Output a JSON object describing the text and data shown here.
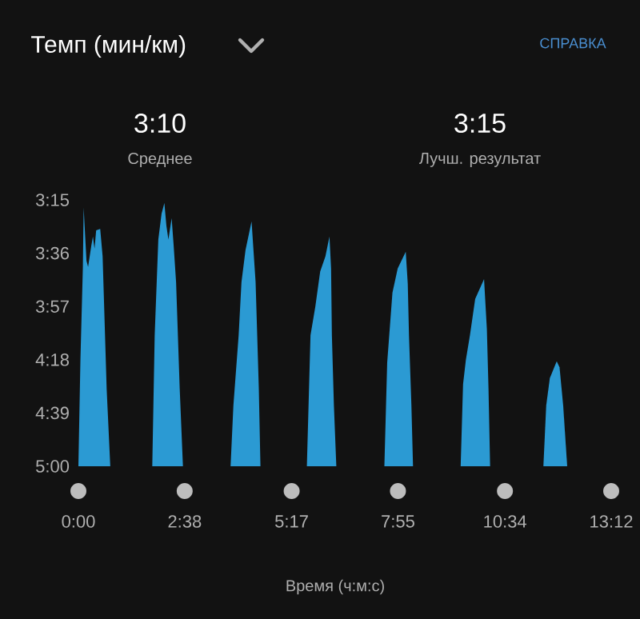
{
  "chart_data": {
    "type": "area",
    "title": "Темп (мин/км)",
    "xlabel": "Время (ч:м:с)",
    "color": "#2b9ad3",
    "annotations": [
      "3:10",
      "Среднее",
      "3:15",
      "Лучш. результат",
      "СПРАВКА"
    ],
    "x": [
      0,
      0.05,
      0.11,
      0.13,
      0.2,
      0.24,
      0.32,
      0.36,
      0.4,
      0.44,
      0.54,
      0.6,
      0.7,
      0.79,
      1.3,
      1.83,
      1.89,
      1.98,
      2.06,
      2.13,
      2.18,
      2.23,
      2.31,
      2.36,
      2.42,
      2.51,
      2.59,
      3.2,
      3.77,
      3.84,
      3.97,
      4.04,
      4.14,
      4.29,
      4.39,
      4.47,
      4.51,
      5.1,
      5.66,
      5.75,
      5.87,
      5.99,
      6.12,
      6.22,
      6.26,
      6.28,
      6.33,
      6.39,
      7.0,
      7.58,
      7.65,
      7.78,
      7.91,
      8.11,
      8.16,
      8.19,
      8.25,
      8.29,
      8.9,
      9.47,
      9.53,
      9.6,
      9.7,
      9.83,
      10.05,
      10.12,
      10.16,
      10.2,
      10.9,
      11.52,
      11.59,
      11.68,
      11.85,
      11.92,
      12.01,
      12.11
    ],
    "values": [
      5.0,
      4.3,
      3.7,
      3.3,
      3.65,
      3.69,
      3.55,
      3.49,
      3.57,
      3.45,
      3.44,
      3.62,
      4.49,
      5.0,
      null,
      5.0,
      4.14,
      3.51,
      3.34,
      3.27,
      3.42,
      3.51,
      3.37,
      3.55,
      3.79,
      4.49,
      5.0,
      null,
      5.0,
      4.6,
      4.14,
      3.79,
      3.58,
      3.39,
      3.79,
      4.49,
      5.0,
      null,
      5.0,
      4.14,
      3.95,
      3.72,
      3.62,
      3.49,
      3.7,
      4.14,
      4.6,
      5.0,
      null,
      5.0,
      4.32,
      3.86,
      3.7,
      3.59,
      3.8,
      4.14,
      4.6,
      5.0,
      null,
      5.0,
      4.46,
      4.3,
      4.14,
      3.9,
      3.77,
      4.1,
      4.49,
      5.0,
      null,
      5.0,
      4.6,
      4.42,
      4.31,
      4.35,
      4.6,
      5.0
    ],
    "xlim": [
      0,
      13.2
    ],
    "xticks": [
      {
        "value": 0,
        "label": "0:00"
      },
      {
        "value": 2.633,
        "label": "2:38"
      },
      {
        "value": 5.283,
        "label": "5:17"
      },
      {
        "value": 7.917,
        "label": "7:55"
      },
      {
        "value": 10.567,
        "label": "10:34"
      },
      {
        "value": 13.2,
        "label": "13:12"
      }
    ],
    "ylim": [
      5.0,
      3.25
    ],
    "yticks": [
      {
        "value": 3.25,
        "label": "3:15"
      },
      {
        "value": 3.6,
        "label": "3:36"
      },
      {
        "value": 3.95,
        "label": "3:57"
      },
      {
        "value": 4.3,
        "label": "4:18"
      },
      {
        "value": 4.65,
        "label": "4:39"
      },
      {
        "value": 5.0,
        "label": "5:00"
      }
    ]
  }
}
